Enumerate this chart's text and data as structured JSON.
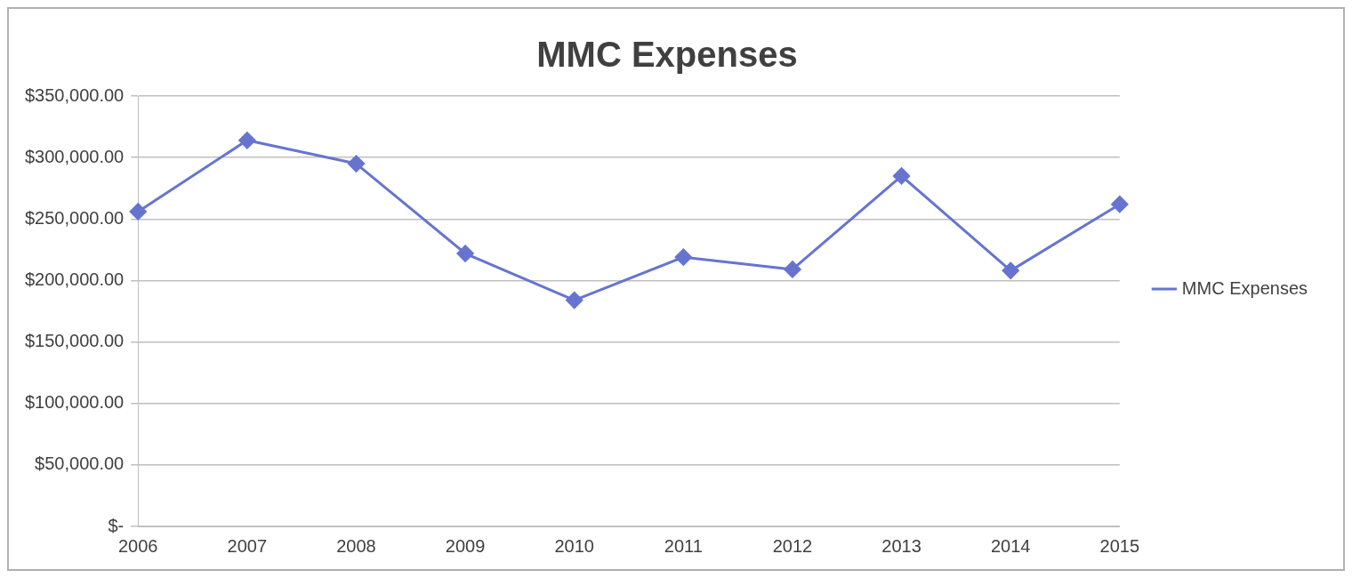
{
  "chart_data": {
    "type": "line",
    "title": "MMC Expenses",
    "categories": [
      "2006",
      "2007",
      "2008",
      "2009",
      "2010",
      "2011",
      "2012",
      "2013",
      "2014",
      "2015"
    ],
    "series": [
      {
        "name": "MMC Expenses",
        "color": "#6674d0",
        "values": [
          256000,
          314000,
          295000,
          222000,
          184000,
          219000,
          209000,
          285000,
          208000,
          262000
        ]
      }
    ],
    "ylim": [
      0,
      350000
    ],
    "yticks": [
      {
        "value": 0,
        "label": "$-"
      },
      {
        "value": 50000,
        "label": "$50,000.00"
      },
      {
        "value": 100000,
        "label": "$100,000.00"
      },
      {
        "value": 150000,
        "label": "$150,000.00"
      },
      {
        "value": 200000,
        "label": "$200,000.00"
      },
      {
        "value": 250000,
        "label": "$250,000.00"
      },
      {
        "value": 300000,
        "label": "$300,000.00"
      },
      {
        "value": 350000,
        "label": "$350,000.00"
      }
    ],
    "grid": "y",
    "legend": "right",
    "marker": "diamond",
    "line_style": "solid"
  }
}
